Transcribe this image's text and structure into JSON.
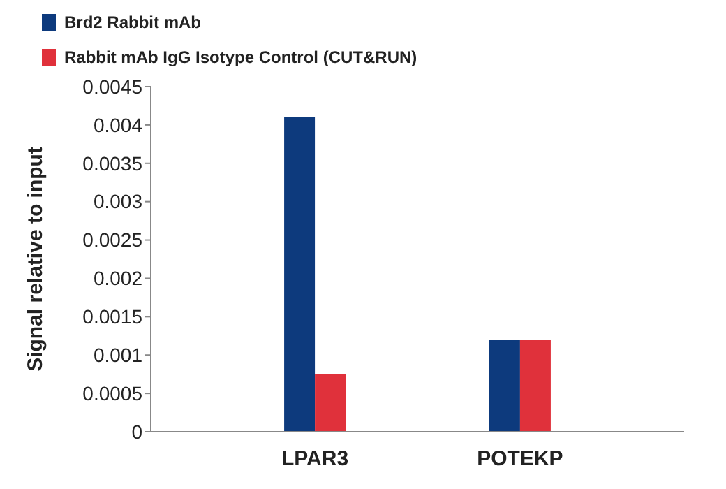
{
  "chart_data": {
    "type": "bar",
    "ylabel": "Signal relative to input",
    "categories": [
      "LPAR3",
      "POTEKP"
    ],
    "series": [
      {
        "name": "Brd2 Rabbit mAb",
        "color": "#0d3a7d",
        "values": [
          0.0041,
          0.0012
        ]
      },
      {
        "name": "Rabbit mAb IgG Isotype Control (CUT&RUN)",
        "color": "#e0313b",
        "values": [
          0.00075,
          0.0012
        ]
      }
    ],
    "ylim": [
      0,
      0.0045
    ],
    "yticks": [
      0,
      0.0005,
      0.001,
      0.0015,
      0.002,
      0.0025,
      0.003,
      0.0035,
      0.004,
      0.0045
    ],
    "grid": false,
    "legend": "top left"
  }
}
